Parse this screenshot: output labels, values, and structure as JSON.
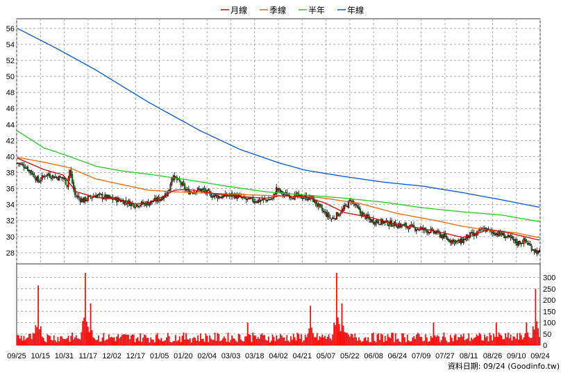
{
  "source_label": "資料日期: 09/24  (Goodinfo.tw)",
  "chart_data": {
    "type": "candlestick",
    "legend": [
      {
        "name": "月線",
        "color": "#cc0000"
      },
      {
        "name": "季線",
        "color": "#ee6600"
      },
      {
        "name": "半年",
        "color": "#22cc22"
      },
      {
        "name": "年線",
        "color": "#0055dd"
      }
    ],
    "price_axis": {
      "ylim": [
        26.6,
        57.2
      ],
      "ticks": [
        28,
        30,
        32,
        34,
        36,
        38,
        40,
        42,
        44,
        46,
        48,
        50,
        52,
        54,
        56
      ],
      "side": "left"
    },
    "volume_axis": {
      "ylim": [
        0,
        360
      ],
      "ticks": [
        0,
        50,
        100,
        150,
        200,
        250,
        300
      ],
      "side": "right"
    },
    "x_tick_labels": [
      "09/25",
      "10/15",
      "10/31",
      "11/17",
      "12/02",
      "12/17",
      "01/05",
      "01/20",
      "02/04",
      "03/03",
      "03/18",
      "04/02",
      "04/21",
      "05/07",
      "05/22",
      "06/08",
      "06/24",
      "07/09",
      "07/27",
      "08/11",
      "08/26",
      "09/10",
      "09/24"
    ],
    "grid": true,
    "n_bars": 248,
    "price_anchors": [
      [
        0,
        39.2
      ],
      [
        6,
        38.8
      ],
      [
        12,
        37.8
      ],
      [
        16,
        36.9
      ],
      [
        22,
        37.8
      ],
      [
        28,
        37.5
      ],
      [
        35,
        37.3
      ],
      [
        38,
        36.5
      ],
      [
        40,
        38.3
      ],
      [
        44,
        35.2
      ],
      [
        50,
        34.5
      ],
      [
        60,
        35.2
      ],
      [
        70,
        34.8
      ],
      [
        80,
        34.5
      ],
      [
        90,
        34.0
      ],
      [
        100,
        34.2
      ],
      [
        110,
        34.8
      ],
      [
        116,
        35.8
      ],
      [
        118,
        37.6
      ],
      [
        124,
        36.8
      ],
      [
        130,
        35.6
      ],
      [
        140,
        35.9
      ],
      [
        148,
        35.2
      ],
      [
        155,
        35.0
      ],
      [
        165,
        35.2
      ],
      [
        175,
        34.6
      ],
      [
        185,
        34.5
      ],
      [
        195,
        34.7
      ],
      [
        198,
        36.0
      ],
      [
        203,
        35.3
      ],
      [
        215,
        35.0
      ],
      [
        225,
        34.8
      ],
      [
        232,
        33.4
      ],
      [
        240,
        32.2
      ],
      [
        248,
        33.2
      ],
      [
        255,
        34.6
      ],
      [
        262,
        33.0
      ],
      [
        270,
        32.0
      ],
      [
        280,
        31.8
      ],
      [
        290,
        31.5
      ],
      [
        300,
        31.2
      ],
      [
        310,
        30.9
      ],
      [
        320,
        30.5
      ],
      [
        330,
        29.6
      ],
      [
        338,
        29.3
      ],
      [
        346,
        30.2
      ],
      [
        350,
        30.2
      ],
      [
        356,
        31.0
      ],
      [
        362,
        30.6
      ],
      [
        370,
        30.3
      ],
      [
        376,
        29.8
      ],
      [
        382,
        29.2
      ],
      [
        388,
        29.5
      ],
      [
        393,
        28.6
      ],
      [
        398,
        28.0
      ]
    ],
    "month_anchors": [
      [
        0,
        39.8
      ],
      [
        20,
        38.4
      ],
      [
        35,
        37.7
      ],
      [
        45,
        35.6
      ],
      [
        60,
        34.9
      ],
      [
        75,
        34.7
      ],
      [
        90,
        34.1
      ],
      [
        100,
        34.2
      ],
      [
        110,
        34.9
      ],
      [
        120,
        35.8
      ],
      [
        130,
        35.9
      ],
      [
        150,
        35.4
      ],
      [
        170,
        35.0
      ],
      [
        190,
        34.8
      ],
      [
        200,
        35.1
      ],
      [
        220,
        35.0
      ],
      [
        235,
        34.2
      ],
      [
        250,
        33.0
      ],
      [
        270,
        32.4
      ],
      [
        290,
        31.5
      ],
      [
        310,
        31.0
      ],
      [
        330,
        30.3
      ],
      [
        340,
        29.9
      ],
      [
        350,
        30.3
      ],
      [
        360,
        30.9
      ],
      [
        372,
        30.6
      ],
      [
        385,
        30.1
      ],
      [
        398,
        29.6
      ]
    ],
    "quarter_anchors": [
      [
        0,
        39.9
      ],
      [
        20,
        39.3
      ],
      [
        40,
        38.6
      ],
      [
        60,
        37.2
      ],
      [
        80,
        36.5
      ],
      [
        100,
        35.8
      ],
      [
        120,
        35.6
      ],
      [
        150,
        35.4
      ],
      [
        180,
        35.2
      ],
      [
        200,
        35.1
      ],
      [
        230,
        34.9
      ],
      [
        260,
        34.2
      ],
      [
        290,
        32.9
      ],
      [
        320,
        32.0
      ],
      [
        340,
        31.3
      ],
      [
        360,
        30.8
      ],
      [
        380,
        30.5
      ],
      [
        398,
        29.9
      ]
    ],
    "half_year_anchors": [
      [
        0,
        43.2
      ],
      [
        20,
        41.1
      ],
      [
        40,
        40.0
      ],
      [
        60,
        38.8
      ],
      [
        80,
        38.2
      ],
      [
        100,
        37.8
      ],
      [
        130,
        37.1
      ],
      [
        160,
        36.3
      ],
      [
        190,
        35.6
      ],
      [
        220,
        35.2
      ],
      [
        250,
        34.8
      ],
      [
        280,
        34.3
      ],
      [
        310,
        33.6
      ],
      [
        340,
        33.1
      ],
      [
        370,
        32.7
      ],
      [
        398,
        31.9
      ]
    ],
    "year_anchors": [
      [
        0,
        56.0
      ],
      [
        30,
        53.5
      ],
      [
        60,
        50.8
      ],
      [
        100,
        46.8
      ],
      [
        140,
        43.2
      ],
      [
        170,
        40.9
      ],
      [
        200,
        39.2
      ],
      [
        220,
        38.3
      ],
      [
        250,
        37.5
      ],
      [
        280,
        36.8
      ],
      [
        310,
        36.3
      ],
      [
        340,
        35.5
      ],
      [
        370,
        34.6
      ],
      [
        398,
        33.7
      ]
    ],
    "volume_spikes": [
      [
        16,
        265
      ],
      [
        52,
        320
      ],
      [
        56,
        185
      ],
      [
        176,
        100
      ],
      [
        224,
        175
      ],
      [
        244,
        320
      ],
      [
        248,
        185
      ],
      [
        318,
        100
      ],
      [
        366,
        100
      ],
      [
        389,
        100
      ],
      [
        396,
        250
      ]
    ],
    "volume_base": 40
  }
}
